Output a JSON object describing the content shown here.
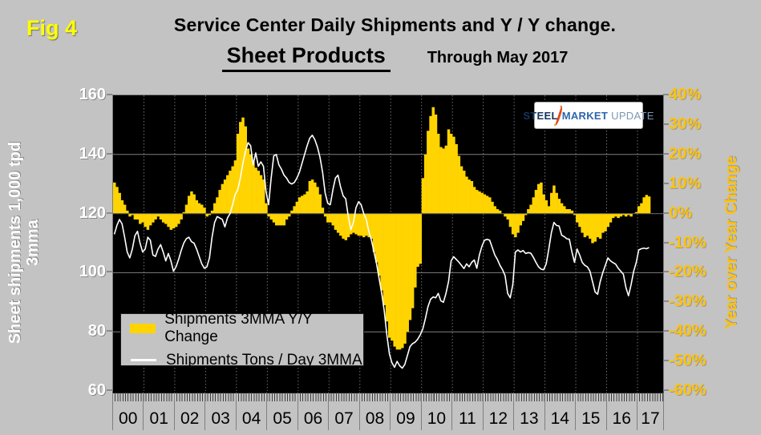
{
  "figure": {
    "fig_label": "Fig 4",
    "title": "Service Center Daily Shipments and Y / Y change.",
    "subtitle": "Sheet Products",
    "period": "Through May 2017"
  },
  "logo": {
    "word1": "STEEL",
    "word2": "MARKET",
    "word3": "UPDATE"
  },
  "left_axis": {
    "title_line1": "Sheet shipments 1,000 tpd",
    "title_line2": "3mma",
    "ticks": [
      "160",
      "140",
      "120",
      "100",
      "80",
      "60"
    ],
    "tick_values": [
      160,
      140,
      120,
      100,
      80,
      60
    ],
    "min": 60,
    "max": 160
  },
  "right_axis": {
    "title": "Year over Year Change",
    "ticks": [
      "40%",
      "30%",
      "20%",
      "10%",
      "0%",
      "-10%",
      "-20%",
      "-30%",
      "-40%",
      "-50%",
      "-60%"
    ],
    "tick_values": [
      40,
      30,
      20,
      10,
      0,
      -10,
      -20,
      -30,
      -40,
      -50,
      -60
    ],
    "min": -60,
    "max": 40
  },
  "x_axis": {
    "years": [
      "00",
      "01",
      "02",
      "03",
      "04",
      "05",
      "06",
      "07",
      "08",
      "09",
      "10",
      "11",
      "12",
      "13",
      "14",
      "15",
      "16",
      "17"
    ]
  },
  "legend": {
    "items": [
      {
        "label": "Shipments 3MMA Y/Y Change",
        "swatch": "bar",
        "color": "#ffd400"
      },
      {
        "label": "Shipments Tons / Day 3MMA",
        "swatch": "line",
        "color": "#ffffff"
      }
    ]
  },
  "colors": {
    "background": "#c3c3c3",
    "plot_background": "#000000",
    "bar": "#ffd400",
    "line": "#ffffff",
    "fig_label": "#ffff00",
    "right_axis_text": "#fdc20d",
    "left_axis_text": "#ffffff",
    "gridline": "#7f7f7f"
  },
  "chart_data": {
    "type": "combo",
    "x_start": "2000-01",
    "x_end": "2017-05",
    "x_unit": "month",
    "months_count": 209,
    "grid": {
      "horizontal_left_values": [
        140,
        120,
        100,
        80
      ],
      "vertical_at_year_starts": true
    },
    "zero_pct_equals_left_value": 120,
    "series": [
      {
        "name": "Shipments 3MMA Y/Y Change",
        "type": "bar",
        "axis": "right",
        "unit": "%",
        "values": [
          10.5,
          9,
          7,
          4.5,
          3,
          1,
          -1,
          -0.5,
          -2,
          -2,
          -3.5,
          -3,
          -4.5,
          -5.5,
          -4,
          -3,
          -2,
          -1,
          -2,
          -3,
          -3.5,
          -4.5,
          -5.5,
          -5,
          -4.5,
          -3.5,
          -2,
          0.5,
          3,
          6,
          7.5,
          6.5,
          4.5,
          3.5,
          3,
          2,
          -1,
          -0.5,
          1,
          3.5,
          5.5,
          8,
          10,
          11.5,
          13,
          14.5,
          16,
          18,
          27,
          31,
          32.5,
          29.5,
          22,
          20,
          17.5,
          15.5,
          14.5,
          13,
          11.5,
          3.5,
          -1,
          -2,
          -3,
          -4,
          -4,
          -4,
          -4,
          -2,
          -1,
          1,
          2.5,
          4,
          5.5,
          6,
          6.5,
          7.5,
          11,
          11.5,
          10.5,
          9,
          6.5,
          2,
          -1,
          -3,
          -3,
          -4,
          -5.5,
          -6.5,
          -7.5,
          -8.5,
          -9,
          -8,
          -7,
          -6.5,
          -7,
          -7.5,
          -7.5,
          -8,
          -7.5,
          -8,
          -8.5,
          -13,
          -16.5,
          -21,
          -26,
          -31,
          -36.5,
          -42,
          -43,
          -45,
          -46,
          -46,
          -45.5,
          -44,
          -40,
          -36,
          -32,
          -25,
          -18,
          -17,
          12,
          20,
          28,
          33,
          36,
          33.5,
          27,
          22.5,
          22,
          23,
          28.5,
          27,
          26,
          23.5,
          19.5,
          16,
          14.5,
          12.5,
          11.5,
          11,
          9,
          8,
          7.5,
          7,
          6.5,
          6,
          5.5,
          4,
          2.5,
          1.5,
          1,
          0,
          -1,
          -2,
          -4.5,
          -7,
          -8,
          -6.5,
          -4,
          -2.5,
          -0.5,
          1.5,
          3,
          5.5,
          8,
          10,
          10.5,
          6.5,
          4.5,
          2.5,
          7,
          9.5,
          7,
          5,
          3.5,
          2.5,
          1.5,
          1.5,
          1,
          -0.5,
          -3,
          -4.5,
          -6.5,
          -8,
          -7.5,
          -8.5,
          -10,
          -9.5,
          -8,
          -8.5,
          -6.5,
          -6,
          -4.5,
          -3,
          -1.5,
          -1,
          -1.5,
          -1,
          -0.5,
          -1,
          -0.5,
          -1,
          0,
          0.5,
          2.5,
          3.5,
          5.5,
          6.3,
          5.8
        ]
      },
      {
        "name": "Shipments Tons / Day 3MMA",
        "type": "line",
        "axis": "left",
        "unit": "1,000 tons per day",
        "values": [
          113,
          116,
          118,
          116.5,
          112,
          107,
          105,
          108,
          112.5,
          114,
          110,
          107,
          108,
          112,
          111,
          106,
          105.5,
          108,
          109.5,
          107,
          104,
          106.5,
          104,
          100.5,
          102,
          104.5,
          107.5,
          110,
          111.5,
          112,
          110.5,
          110,
          108,
          105.5,
          103,
          101.5,
          102,
          105,
          112,
          117,
          119,
          118.5,
          118,
          115.5,
          118.5,
          120,
          123,
          126.5,
          128,
          132,
          137,
          141,
          144,
          143,
          136.5,
          140.5,
          136,
          137.5,
          136,
          127.5,
          123,
          132,
          139.5,
          140,
          136.5,
          135,
          133,
          132,
          130.5,
          130,
          130.5,
          132,
          134,
          137,
          140,
          143,
          145.5,
          146.5,
          145,
          142.5,
          139,
          134,
          127,
          123.5,
          123,
          128,
          132,
          133,
          129,
          126,
          125,
          119,
          114.5,
          117,
          122,
          124,
          123,
          120,
          118,
          114,
          111,
          107,
          103,
          98,
          93,
          87,
          79,
          72.5,
          69.5,
          68,
          70,
          68.5,
          67.7,
          69,
          72,
          75,
          76,
          76.5,
          77.5,
          79,
          81,
          84.5,
          88.5,
          91,
          91.8,
          91.5,
          93,
          90.5,
          90,
          93,
          97,
          104,
          105.4,
          104.5,
          103.6,
          102.5,
          101.4,
          103,
          102,
          103.5,
          104.3,
          101.5,
          106,
          109,
          111,
          111.3,
          111,
          108.5,
          106,
          104.5,
          102.5,
          101,
          99,
          93,
          91.5,
          96,
          107,
          107.7,
          107,
          107.5,
          106.5,
          106.8,
          106.6,
          105.2,
          103.5,
          102,
          101.2,
          101,
          103,
          108,
          113.5,
          117,
          116,
          115.8,
          112.7,
          112.2,
          111.5,
          111.3,
          107,
          103.5,
          108,
          106,
          103.5,
          102.5,
          102,
          100.5,
          97,
          93.5,
          92.7,
          97,
          100,
          102.5,
          105,
          104,
          103.4,
          102.9,
          101.5,
          100.5,
          99.5,
          95,
          92.2,
          95.9,
          100.4,
          103.4,
          107.7,
          108.1,
          108.3,
          108.1,
          108.5
        ]
      }
    ]
  }
}
